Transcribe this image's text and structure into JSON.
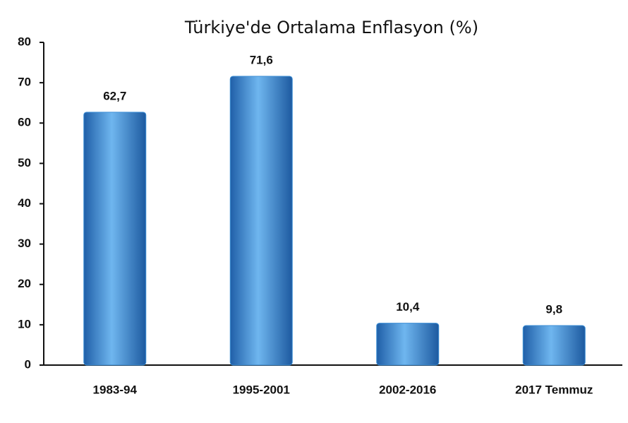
{
  "chart_data": {
    "type": "bar",
    "title": "Türkiye'de Ortalama Enflasyon (%)",
    "categories": [
      "1983-94",
      "1995-2001",
      "2002-2016",
      "2017 Temmuz"
    ],
    "values": [
      62.7,
      71.6,
      10.4,
      9.8
    ],
    "value_labels": [
      "62,7",
      "71,6",
      "10,4",
      "9,8"
    ],
    "color": "#3d8fd6",
    "ylim": [
      0,
      80
    ],
    "yticks": [
      0,
      10,
      20,
      30,
      40,
      50,
      60,
      70,
      80
    ],
    "grid": false
  }
}
